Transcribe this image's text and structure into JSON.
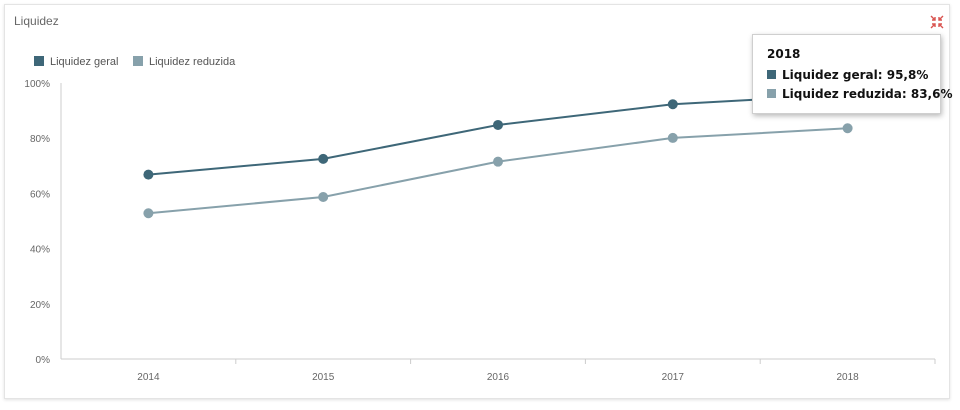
{
  "panel": {
    "title": "Liquidez"
  },
  "icons": {
    "collapse": "collapse-arrows-icon"
  },
  "colors": {
    "series1": "#3e6778",
    "series2": "#87a1ab",
    "collapse": "#d9534f",
    "grid": "#e6e6e6",
    "axis": "#cccccc"
  },
  "chart_data": {
    "type": "line",
    "title": "",
    "xlabel": "",
    "ylabel": "",
    "categories": [
      "2014",
      "2015",
      "2016",
      "2017",
      "2018"
    ],
    "series": [
      {
        "name": "Liquidez geral",
        "values": [
          66.8,
          72.5,
          84.8,
          92.3,
          95.8
        ]
      },
      {
        "name": "Liquidez reduzida",
        "values": [
          52.8,
          58.7,
          71.5,
          80.1,
          83.6
        ]
      }
    ],
    "ylim": [
      0,
      100
    ],
    "yticks": [
      "0%",
      "20%",
      "40%",
      "60%",
      "80%",
      "100%"
    ],
    "grid": false,
    "legend": "top-left"
  },
  "tooltip": {
    "title": "2018",
    "rows": [
      {
        "label": "Liquidez geral: 95,8%"
      },
      {
        "label": "Liquidez reduzida: 83,6%"
      }
    ]
  }
}
